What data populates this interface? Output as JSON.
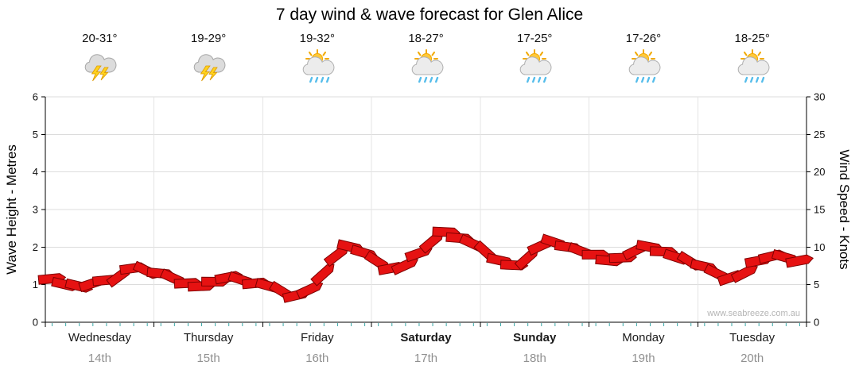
{
  "title": "7 day wind & wave forecast for Glen Alice",
  "watermark": "www.seabreeze.com.au",
  "days": [
    {
      "name": "Wednesday",
      "date": "14th",
      "temp": "20-31°",
      "icon": "storm",
      "bold": false
    },
    {
      "name": "Thursday",
      "date": "15th",
      "temp": "19-29°",
      "icon": "storm",
      "bold": false
    },
    {
      "name": "Friday",
      "date": "16th",
      "temp": "19-32°",
      "icon": "sun-showers",
      "bold": false
    },
    {
      "name": "Saturday",
      "date": "17th",
      "temp": "18-27°",
      "icon": "sun-showers",
      "bold": true
    },
    {
      "name": "Sunday",
      "date": "18th",
      "temp": "17-25°",
      "icon": "sun-showers",
      "bold": true
    },
    {
      "name": "Monday",
      "date": "19th",
      "temp": "17-26°",
      "icon": "sun-showers",
      "bold": false
    },
    {
      "name": "Tuesday",
      "date": "20th",
      "temp": "18-25°",
      "icon": "sun-showers",
      "bold": false
    }
  ],
  "chart_data": {
    "type": "line",
    "title": "7 day wind & wave forecast for Glen Alice",
    "x_axis": {
      "days": [
        "Wednesday",
        "Thursday",
        "Friday",
        "Saturday",
        "Sunday",
        "Monday",
        "Tuesday"
      ],
      "dates": [
        "14th",
        "15th",
        "16th",
        "17th",
        "18th",
        "19th",
        "20th"
      ],
      "points_per_day": 8
    },
    "y_left": {
      "label": "Wave Height - Metres",
      "range": [
        0,
        6
      ],
      "ticks": [
        0,
        1,
        2,
        3,
        4,
        5,
        6
      ]
    },
    "y_right": {
      "label": "Wind Speed - Knots",
      "range": [
        0,
        30
      ],
      "ticks": [
        0,
        5,
        10,
        15,
        20,
        25,
        30
      ]
    },
    "series": [
      {
        "name": "Wind Speed",
        "units": "knots",
        "axis": "right",
        "color": "#e61212",
        "values": [
          5.8,
          5.0,
          4.8,
          5.2,
          5.6,
          6.2,
          7.2,
          6.8,
          6.5,
          5.8,
          5.2,
          4.8,
          5.4,
          6.0,
          5.6,
          5.2,
          4.8,
          4.0,
          3.6,
          4.4,
          6.5,
          9.0,
          10.0,
          9.2,
          8.0,
          7.2,
          7.6,
          9.2,
          10.8,
          12.0,
          11.2,
          10.4,
          9.2,
          8.2,
          7.6,
          8.6,
          10.2,
          10.6,
          10.0,
          9.4,
          9.0,
          8.2,
          8.6,
          9.6,
          10.0,
          9.4,
          8.6,
          8.0,
          7.4,
          6.4,
          6.0,
          6.6,
          8.2,
          8.8,
          8.6,
          8.2
        ]
      }
    ],
    "style": {
      "marker": "wind-arrow",
      "grid": true,
      "legend": "none"
    }
  }
}
